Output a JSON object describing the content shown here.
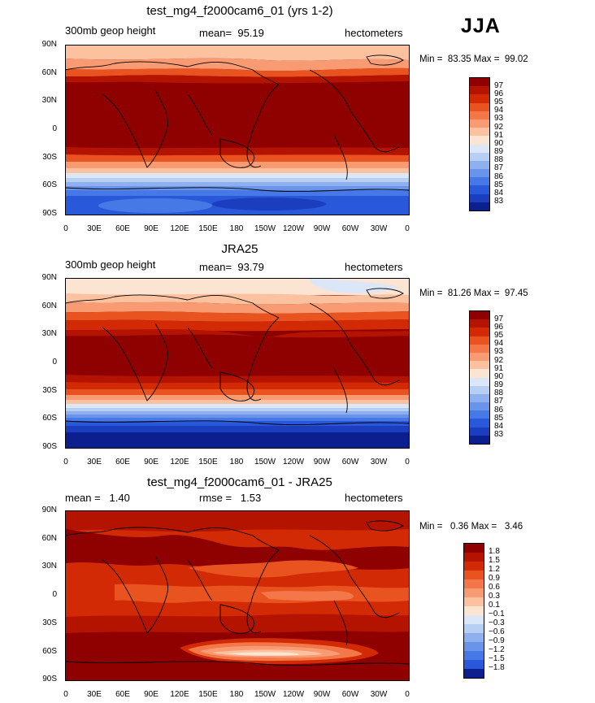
{
  "season": "JJA",
  "panels": [
    {
      "title": "test_mg4_f2000cam6_01 (yrs 1-2)",
      "left_label": "300mb geop height",
      "center_label": "mean=  95.19",
      "right_label": "hectometers",
      "min_max": "Min =  83.35 Max =  99.02",
      "colorbar_labels": [
        "97",
        "96",
        "95",
        "94",
        "93",
        "92",
        "91",
        "90",
        "89",
        "88",
        "87",
        "86",
        "85",
        "84",
        "83"
      ]
    },
    {
      "title": "JRA25",
      "left_label": "300mb geop height",
      "center_label": "mean=  93.79",
      "right_label": "hectometers",
      "min_max": "Min =  81.26 Max =  97.45",
      "colorbar_labels": [
        "97",
        "96",
        "95",
        "94",
        "93",
        "92",
        "91",
        "90",
        "89",
        "88",
        "87",
        "86",
        "85",
        "84",
        "83"
      ]
    },
    {
      "title": "test_mg4_f2000cam6_01 - JRA25",
      "left_label": "mean =   1.40",
      "center_label": "rmse =   1.53",
      "right_label": "hectometers",
      "min_max": "Min =   0.36 Max =   3.46",
      "colorbar_labels": [
        "1.8",
        "1.5",
        "1.2",
        "0.9",
        "0.6",
        "0.3",
        "0.1",
        "−0.1",
        "−0.3",
        "−0.6",
        "−0.9",
        "−1.2",
        "−1.5",
        "−1.8"
      ]
    }
  ],
  "lat_labels": [
    "90N",
    "60N",
    "30N",
    "0",
    "30S",
    "60S",
    "90S"
  ],
  "lon_labels": [
    "0",
    "30E",
    "60E",
    "90E",
    "120E",
    "150E",
    "180",
    "150W",
    "120W",
    "90W",
    "60W",
    "30W",
    "0"
  ],
  "colors": {
    "height_scale": [
      "#8f0000",
      "#b41300",
      "#d12a05",
      "#e8531f",
      "#f4774a",
      "#f89b73",
      "#fcc19f",
      "#fce4d2",
      "#dbe7f7",
      "#b6cff2",
      "#8eb0ee",
      "#6a94ea",
      "#4779e6",
      "#2a58da",
      "#1a3ebd",
      "#0b1f8e"
    ],
    "diff_scale": [
      "#8f0000",
      "#b41300",
      "#d12a05",
      "#e8531f",
      "#f4774a",
      "#f89b73",
      "#fcc19f",
      "#fce4d2",
      "#dbe7f7",
      "#b6cff2",
      "#8eb0ee",
      "#6a94ea",
      "#4779e6",
      "#2a58da",
      "#0b1f8e"
    ]
  }
}
